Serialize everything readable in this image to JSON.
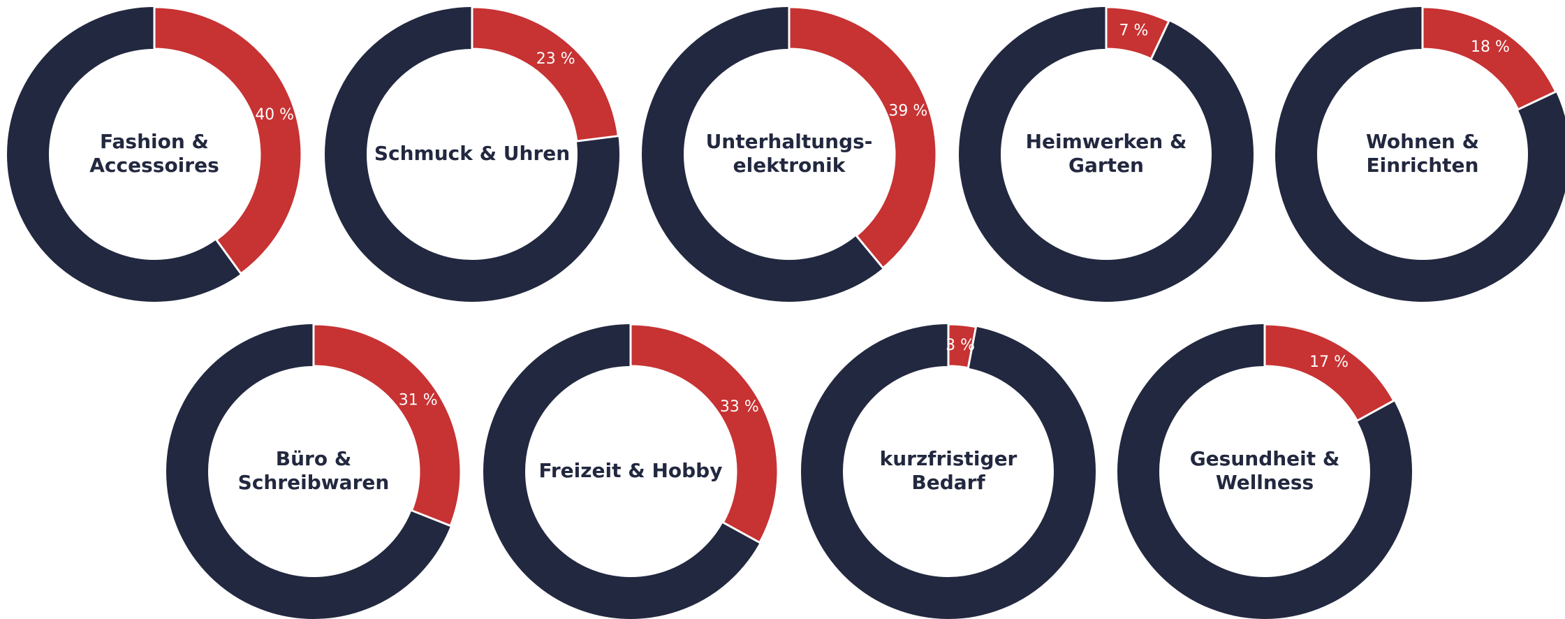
{
  "chart_data": [
    {
      "type": "donut",
      "label_lines": [
        "Fashion &",
        "Accessoires"
      ],
      "values": [
        40
      ],
      "value_labels": [
        "40 %"
      ],
      "color": "#c73233",
      "track_color": "#22283f"
    },
    {
      "type": "donut",
      "label_lines": [
        "Schmuck & Uhren"
      ],
      "values": [
        23
      ],
      "value_labels": [
        "23 %"
      ],
      "color": "#c73233",
      "track_color": "#22283f"
    },
    {
      "type": "donut",
      "label_lines": [
        "Unterhaltungs-",
        "elektronik"
      ],
      "values": [
        39
      ],
      "value_labels": [
        "39 %"
      ],
      "color": "#c73233",
      "track_color": "#22283f"
    },
    {
      "type": "donut",
      "label_lines": [
        "Heimwerken &",
        "Garten"
      ],
      "values": [
        7
      ],
      "value_labels": [
        "7 %"
      ],
      "color": "#c73233",
      "track_color": "#22283f"
    },
    {
      "type": "donut",
      "label_lines": [
        "Wohnen &",
        "Einrichten"
      ],
      "values": [
        18
      ],
      "value_labels": [
        "18 %"
      ],
      "color": "#c73233",
      "track_color": "#22283f"
    },
    {
      "type": "donut",
      "label_lines": [
        "Büro &",
        "Schreibwaren"
      ],
      "values": [
        31
      ],
      "value_labels": [
        "31 %"
      ],
      "color": "#c73233",
      "track_color": "#22283f"
    },
    {
      "type": "donut",
      "label_lines": [
        "Freizeit & Hobby"
      ],
      "values": [
        33
      ],
      "value_labels": [
        "33 %"
      ],
      "color": "#c73233",
      "track_color": "#22283f"
    },
    {
      "type": "donut",
      "label_lines": [
        "kurzfristiger",
        "Bedarf"
      ],
      "values": [
        3
      ],
      "value_labels": [
        "3 %"
      ],
      "color": "#c73233",
      "track_color": "#22283f"
    },
    {
      "type": "donut",
      "label_lines": [
        "Gesundheit &",
        "Wellness"
      ],
      "values": [
        17
      ],
      "value_labels": [
        "17 %"
      ],
      "color": "#c73233",
      "track_color": "#22283f"
    }
  ]
}
